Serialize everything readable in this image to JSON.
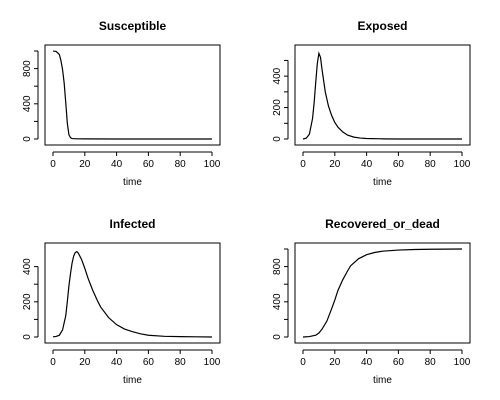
{
  "chart_data": [
    {
      "type": "line",
      "title": "Susceptible",
      "xlabel": "time",
      "ylabel": "",
      "xlim": [
        0,
        100
      ],
      "ylim": [
        0,
        1000
      ],
      "xticks": [
        0,
        20,
        40,
        60,
        80,
        100
      ],
      "yticks": [
        0,
        400,
        800
      ],
      "yticks_minor": [
        200,
        600,
        1000
      ],
      "grid": false,
      "series": [
        {
          "x": [
            0,
            2,
            4,
            5,
            6,
            7,
            8,
            9,
            10,
            11,
            12,
            15,
            20,
            40,
            60,
            80,
            100
          ],
          "y": [
            999,
            995,
            960,
            890,
            790,
            640,
            420,
            180,
            50,
            15,
            5,
            2,
            1,
            0,
            0,
            0,
            0
          ]
        }
      ]
    },
    {
      "type": "line",
      "title": "Exposed",
      "xlabel": "time",
      "ylabel": "",
      "xlim": [
        0,
        100
      ],
      "ylim": [
        0,
        560
      ],
      "xticks": [
        0,
        20,
        40,
        60,
        80,
        100
      ],
      "yticks": [
        0,
        200,
        400
      ],
      "yticks_minor": [
        100,
        300,
        500
      ],
      "grid": false,
      "series": [
        {
          "x": [
            0,
            2,
            4,
            6,
            7,
            8,
            9,
            10,
            11,
            12,
            13,
            14,
            16,
            18,
            20,
            22,
            25,
            28,
            32,
            36,
            40,
            50,
            60,
            80,
            100
          ],
          "y": [
            0,
            5,
            30,
            130,
            230,
            360,
            480,
            545,
            520,
            440,
            370,
            300,
            210,
            150,
            105,
            75,
            45,
            25,
            12,
            6,
            3,
            1,
            0,
            0,
            0
          ]
        }
      ]
    },
    {
      "type": "line",
      "title": "Infected",
      "xlabel": "time",
      "ylabel": "",
      "xlim": [
        0,
        100
      ],
      "ylim": [
        0,
        500
      ],
      "xticks": [
        0,
        20,
        40,
        60,
        80,
        100
      ],
      "yticks": [
        0,
        200,
        400
      ],
      "yticks_minor": [
        100,
        300
      ],
      "grid": false,
      "series": [
        {
          "x": [
            0,
            2,
            4,
            6,
            8,
            9,
            10,
            11,
            12,
            13,
            14,
            15,
            16,
            18,
            20,
            22,
            25,
            28,
            30,
            35,
            40,
            45,
            50,
            55,
            60,
            70,
            80,
            90,
            100
          ],
          "y": [
            1,
            3,
            10,
            40,
            120,
            200,
            290,
            360,
            420,
            460,
            480,
            485,
            475,
            440,
            390,
            335,
            265,
            205,
            170,
            110,
            70,
            45,
            30,
            18,
            10,
            4,
            2,
            1,
            0
          ]
        }
      ]
    },
    {
      "type": "line",
      "title": "Recovered_or_dead",
      "xlabel": "time",
      "ylabel": "",
      "xlim": [
        0,
        100
      ],
      "ylim": [
        0,
        1000
      ],
      "xticks": [
        0,
        20,
        40,
        60,
        80,
        100
      ],
      "yticks": [
        0,
        400,
        800
      ],
      "yticks_minor": [
        200,
        600,
        1000
      ],
      "grid": false,
      "series": [
        {
          "x": [
            0,
            4,
            8,
            10,
            12,
            15,
            18,
            20,
            22,
            25,
            28,
            30,
            35,
            40,
            45,
            50,
            60,
            70,
            80,
            90,
            100
          ],
          "y": [
            0,
            5,
            20,
            45,
            90,
            180,
            320,
            420,
            530,
            650,
            750,
            810,
            890,
            935,
            960,
            975,
            988,
            994,
            997,
            999,
            1000
          ]
        }
      ]
    }
  ]
}
